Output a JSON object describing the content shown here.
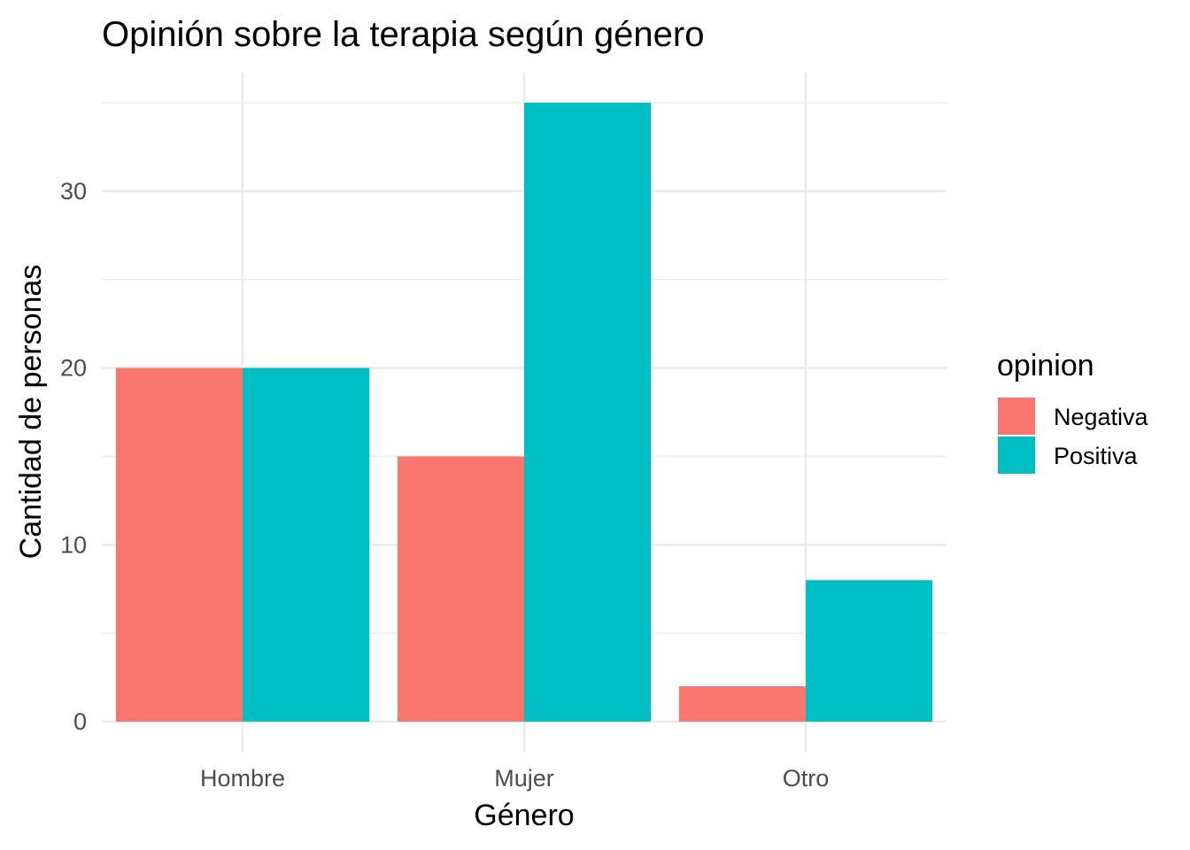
{
  "chart_data": {
    "type": "bar",
    "title": "Opinión sobre la terapia según género",
    "xlabel": "Género",
    "ylabel": "Cantidad de personas",
    "categories": [
      "Hombre",
      "Mujer",
      "Otro"
    ],
    "series": [
      {
        "name": "Negativa",
        "values": [
          20,
          15,
          2
        ],
        "color": "#F8766D"
      },
      {
        "name": "Positiva",
        "values": [
          20,
          35,
          8
        ],
        "color": "#00BFC4"
      }
    ],
    "yticks": [
      0,
      10,
      20,
      30
    ],
    "ylim": [
      0,
      35
    ],
    "grid": true,
    "legend": {
      "title": "opinion",
      "position": "right"
    }
  }
}
